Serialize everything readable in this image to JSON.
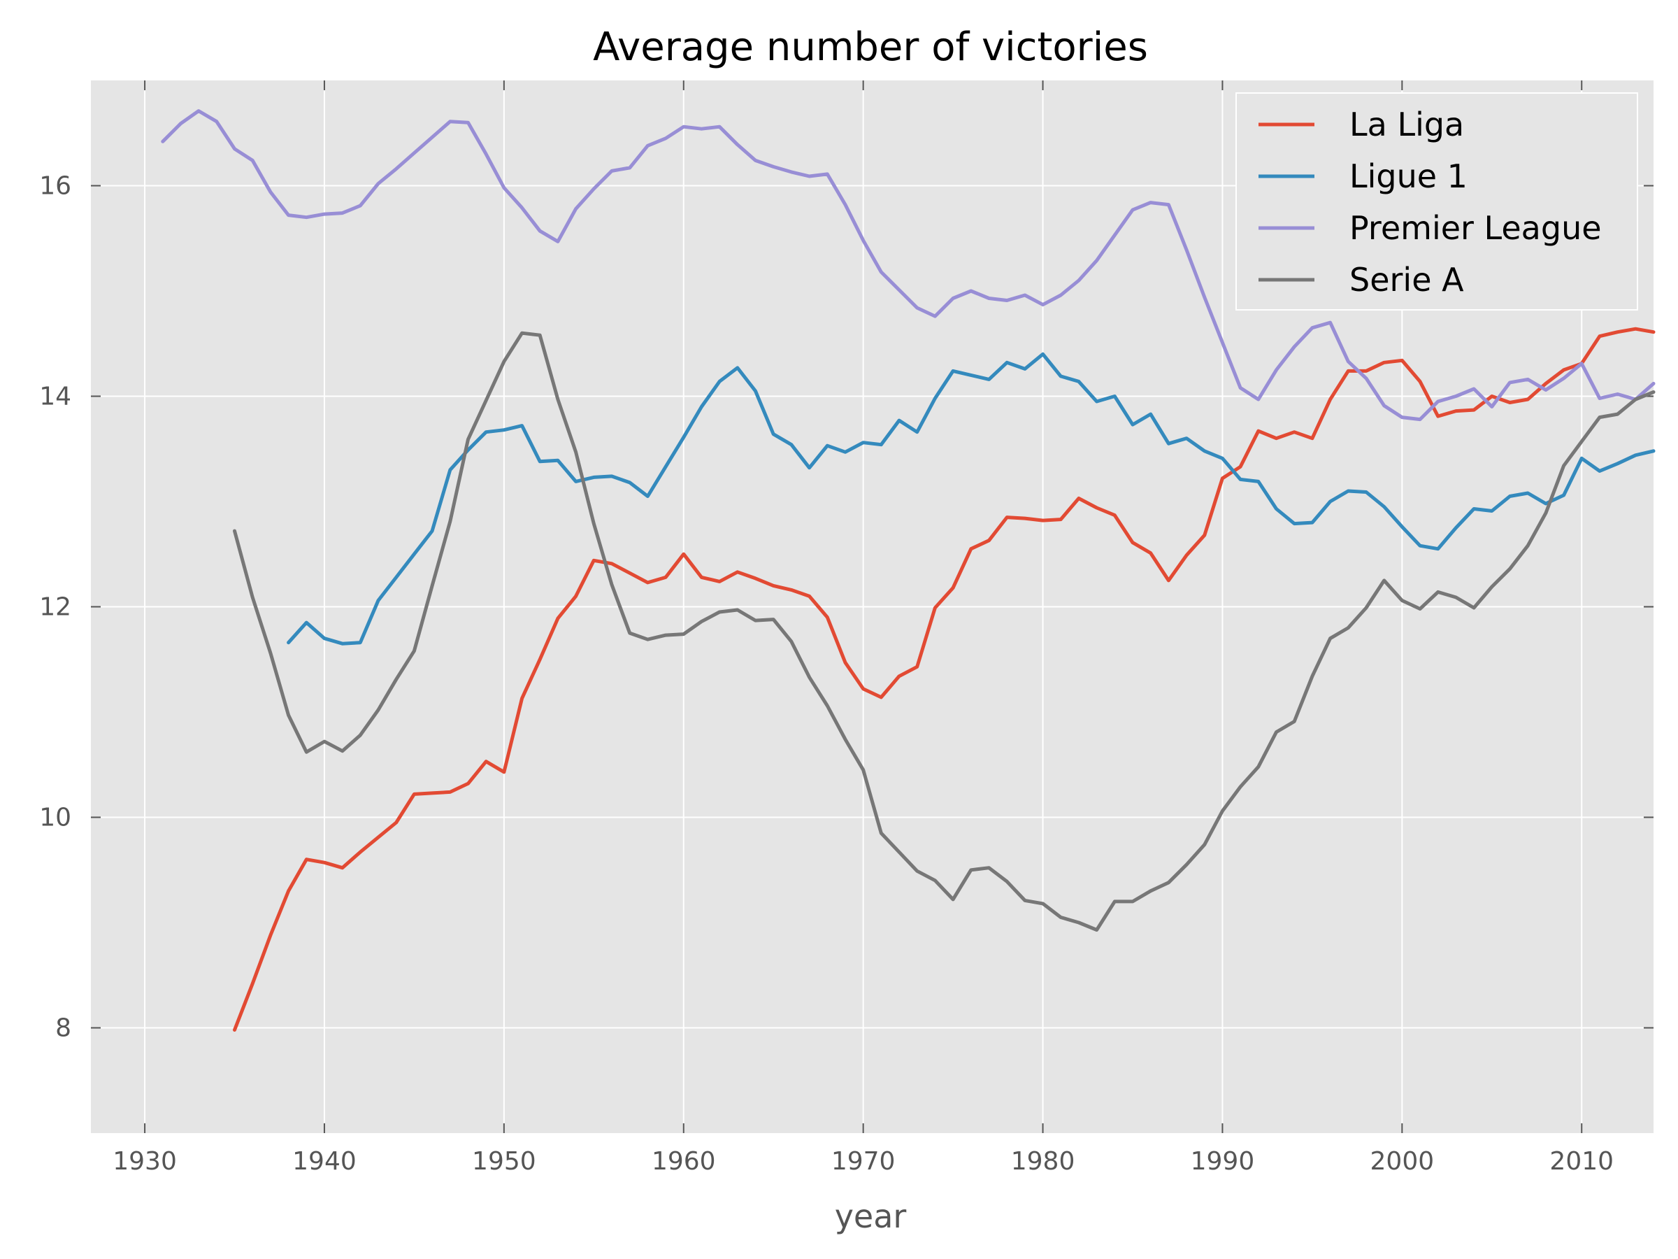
{
  "chart_data": {
    "type": "line",
    "title": "Average number of victories",
    "xlabel": "year",
    "ylabel": "",
    "xlim": [
      1927,
      2014
    ],
    "ylim": [
      7,
      17
    ],
    "xticks": [
      1930,
      1940,
      1950,
      1960,
      1970,
      1980,
      1990,
      2000,
      2010
    ],
    "yticks": [
      8,
      10,
      12,
      14,
      16
    ],
    "grid": true,
    "legend_position": "top-right",
    "colors": {
      "background": "#e5e5e5",
      "La Liga": "#e24a33",
      "Ligue 1": "#348abd",
      "Premier League": "#988ed5",
      "Serie A": "#777777"
    },
    "series": [
      {
        "name": "La Liga",
        "x": [
          1935,
          1936,
          1937,
          1938,
          1939,
          1940,
          1941,
          1942,
          1943,
          1944,
          1945,
          1946,
          1947,
          1948,
          1949,
          1950,
          1951,
          1952,
          1953,
          1954,
          1955,
          1956,
          1957,
          1958,
          1959,
          1960,
          1961,
          1962,
          1963,
          1964,
          1965,
          1966,
          1967,
          1968,
          1969,
          1970,
          1971,
          1972,
          1973,
          1974,
          1975,
          1976,
          1977,
          1978,
          1979,
          1980,
          1981,
          1982,
          1983,
          1984,
          1985,
          1986,
          1987,
          1988,
          1989,
          1990,
          1991,
          1992,
          1993,
          1994,
          1995,
          1996,
          1997,
          1998,
          1999,
          2000,
          2001,
          2002,
          2003,
          2004,
          2005,
          2006,
          2007,
          2008,
          2009,
          2010,
          2011,
          2012,
          2013,
          2014
        ],
        "y": [
          7.98,
          8.42,
          8.88,
          9.3,
          9.6,
          9.57,
          9.52,
          9.67,
          9.81,
          9.95,
          10.22,
          10.23,
          10.24,
          10.32,
          10.53,
          10.43,
          11.13,
          11.5,
          11.89,
          12.1,
          12.44,
          12.41,
          12.32,
          12.23,
          12.28,
          12.5,
          12.28,
          12.24,
          12.33,
          12.27,
          12.2,
          12.16,
          12.1,
          11.9,
          11.47,
          11.22,
          11.14,
          11.34,
          11.43,
          11.99,
          12.18,
          12.55,
          12.63,
          12.85,
          12.84,
          12.82,
          12.83,
          13.03,
          12.94,
          12.87,
          12.61,
          12.51,
          12.25,
          12.49,
          12.68,
          13.22,
          13.33,
          13.67,
          13.6,
          13.66,
          13.6,
          13.97,
          14.24,
          14.24,
          14.32,
          14.34,
          14.14,
          13.81,
          13.86,
          13.87,
          14.0,
          13.94,
          13.97,
          14.12,
          14.25,
          14.31,
          14.57,
          14.61,
          14.64,
          14.61
        ]
      },
      {
        "name": "Ligue 1",
        "x": [
          1938,
          1939,
          1940,
          1941,
          1942,
          1943,
          1944,
          1945,
          1946,
          1947,
          1948,
          1949,
          1950,
          1951,
          1952,
          1953,
          1954,
          1955,
          1956,
          1957,
          1958,
          1959,
          1960,
          1961,
          1962,
          1963,
          1964,
          1965,
          1966,
          1967,
          1968,
          1969,
          1970,
          1971,
          1972,
          1973,
          1974,
          1975,
          1976,
          1977,
          1978,
          1979,
          1980,
          1981,
          1982,
          1983,
          1984,
          1985,
          1986,
          1987,
          1988,
          1989,
          1990,
          1991,
          1992,
          1993,
          1994,
          1995,
          1996,
          1997,
          1998,
          1999,
          2000,
          2001,
          2002,
          2003,
          2004,
          2005,
          2006,
          2007,
          2008,
          2009,
          2010,
          2011,
          2012,
          2013,
          2014
        ],
        "y": [
          11.66,
          11.85,
          11.7,
          11.65,
          11.66,
          12.06,
          12.28,
          12.5,
          12.72,
          13.3,
          13.49,
          13.66,
          13.68,
          13.72,
          13.38,
          13.39,
          13.19,
          13.23,
          13.24,
          13.18,
          13.05,
          13.33,
          13.61,
          13.9,
          14.14,
          14.27,
          14.05,
          13.64,
          13.54,
          13.32,
          13.53,
          13.47,
          13.56,
          13.54,
          13.77,
          13.66,
          13.98,
          14.24,
          14.2,
          14.16,
          14.32,
          14.26,
          14.4,
          14.19,
          14.14,
          13.95,
          14.0,
          13.73,
          13.83,
          13.55,
          13.6,
          13.48,
          13.41,
          13.21,
          13.19,
          12.93,
          12.79,
          12.8,
          13.0,
          13.1,
          13.09,
          12.95,
          12.76,
          12.58,
          12.55,
          12.75,
          12.93,
          12.91,
          13.05,
          13.08,
          12.98,
          13.06,
          13.41,
          13.29,
          13.36,
          13.44,
          13.48
        ]
      },
      {
        "name": "Premier League",
        "x": [
          1931,
          1932,
          1933,
          1934,
          1935,
          1936,
          1937,
          1938,
          1939,
          1940,
          1941,
          1942,
          1943,
          1944,
          1945,
          1946,
          1947,
          1948,
          1949,
          1950,
          1951,
          1952,
          1953,
          1954,
          1955,
          1956,
          1957,
          1958,
          1959,
          1960,
          1961,
          1962,
          1963,
          1964,
          1965,
          1966,
          1967,
          1968,
          1969,
          1970,
          1971,
          1972,
          1973,
          1974,
          1975,
          1976,
          1977,
          1978,
          1979,
          1980,
          1981,
          1982,
          1983,
          1984,
          1985,
          1986,
          1987,
          1988,
          1989,
          1990,
          1991,
          1992,
          1993,
          1994,
          1995,
          1996,
          1997,
          1998,
          1999,
          2000,
          2001,
          2002,
          2003,
          2004,
          2005,
          2006,
          2007,
          2008,
          2009,
          2010,
          2011,
          2012,
          2013,
          2014
        ],
        "y": [
          16.42,
          16.59,
          16.71,
          16.61,
          16.35,
          16.24,
          15.94,
          15.72,
          15.7,
          15.73,
          15.74,
          15.81,
          16.02,
          16.16,
          16.31,
          16.46,
          16.61,
          16.6,
          16.3,
          15.98,
          15.79,
          15.57,
          15.47,
          15.78,
          15.97,
          16.14,
          16.17,
          16.38,
          16.45,
          16.56,
          16.54,
          16.56,
          16.39,
          16.24,
          16.18,
          16.13,
          16.09,
          16.11,
          15.82,
          15.48,
          15.18,
          15.01,
          14.84,
          14.76,
          14.93,
          15.0,
          14.93,
          14.91,
          14.96,
          14.87,
          14.96,
          15.1,
          15.29,
          15.53,
          15.77,
          15.84,
          15.82,
          15.39,
          14.94,
          14.51,
          14.08,
          13.97,
          14.25,
          14.47,
          14.65,
          14.7,
          14.33,
          14.17,
          13.91,
          13.8,
          13.78,
          13.95,
          14.0,
          14.07,
          13.9,
          14.13,
          14.16,
          14.06,
          14.17,
          14.31,
          13.98,
          14.02,
          13.97,
          14.12
        ]
      },
      {
        "name": "Serie A",
        "x": [
          1935,
          1936,
          1937,
          1938,
          1939,
          1940,
          1941,
          1942,
          1943,
          1944,
          1945,
          1946,
          1947,
          1948,
          1949,
          1950,
          1951,
          1952,
          1953,
          1954,
          1955,
          1956,
          1957,
          1958,
          1959,
          1960,
          1961,
          1962,
          1963,
          1964,
          1965,
          1966,
          1967,
          1968,
          1969,
          1970,
          1971,
          1972,
          1973,
          1974,
          1975,
          1976,
          1977,
          1978,
          1979,
          1980,
          1981,
          1982,
          1983,
          1984,
          1985,
          1986,
          1987,
          1988,
          1989,
          1990,
          1991,
          1992,
          1993,
          1994,
          1995,
          1996,
          1997,
          1998,
          1999,
          2000,
          2001,
          2002,
          2003,
          2004,
          2005,
          2006,
          2007,
          2008,
          2009,
          2010,
          2011,
          2012,
          2013,
          2014
        ],
        "y": [
          12.72,
          12.09,
          11.56,
          10.97,
          10.62,
          10.72,
          10.63,
          10.78,
          11.02,
          11.31,
          11.58,
          12.2,
          12.81,
          13.59,
          13.96,
          14.33,
          14.6,
          14.58,
          13.97,
          13.47,
          12.79,
          12.21,
          11.75,
          11.69,
          11.73,
          11.74,
          11.86,
          11.95,
          11.97,
          11.87,
          11.88,
          11.67,
          11.33,
          11.06,
          10.74,
          10.45,
          9.85,
          9.67,
          9.49,
          9.4,
          9.22,
          9.5,
          9.52,
          9.39,
          9.21,
          9.18,
          9.05,
          9.0,
          8.93,
          9.2,
          9.2,
          9.3,
          9.38,
          9.55,
          9.74,
          10.06,
          10.29,
          10.48,
          10.81,
          10.91,
          11.34,
          11.7,
          11.8,
          11.99,
          12.25,
          12.06,
          11.98,
          12.14,
          12.09,
          11.99,
          12.19,
          12.36,
          12.58,
          12.89,
          13.34,
          13.57,
          13.8,
          13.83,
          13.97,
          14.04
        ]
      }
    ]
  }
}
